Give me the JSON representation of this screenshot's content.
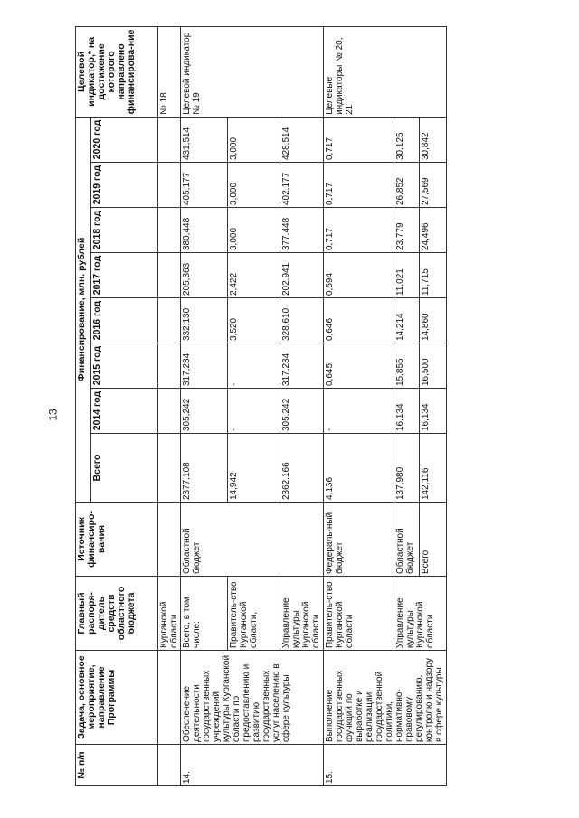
{
  "page_number": "13",
  "header": {
    "num": "№ п/п",
    "task": "Задача, основное мероприятие, направление Программы",
    "manager": "Главный распоря-дитель средств областного бюджета",
    "source": "Источник финансиро-вания",
    "financing": "Финансирование, млн. рублей",
    "total": "Всего",
    "years": [
      "2014 год",
      "2015 год",
      "2016 год",
      "2017 год",
      "2018 год",
      "2019 год",
      "2020 год"
    ],
    "indicator": "Целевой индикатор,* на достижение которого направлено финансирова-ние"
  },
  "continuation": {
    "manager": "Курганской области",
    "indicator": "№ 18"
  },
  "row14": {
    "num": "14.",
    "task": "Обеспечение деятельности государственных учреждений культуры Курганской области по предоставлению и развитию государственных услуг населению в сфере культуры",
    "source": "Областной бюджет",
    "indicator": "Целевой индикатор № 19",
    "sub": [
      {
        "manager": "Всего, в том числе:",
        "values": [
          "2377,108",
          "305,242",
          "317,234",
          "332,130",
          "205,363",
          "380,448",
          "405,177",
          "431,514"
        ]
      },
      {
        "manager": "Правитель-ство Курганской области,",
        "values": [
          "14,942",
          "-",
          "-",
          "3,520",
          "2,422",
          "3,000",
          "3,000",
          "3,000"
        ]
      },
      {
        "manager": "Управление культуры Курганской области",
        "values": [
          "2362,166",
          "305,242",
          "317,234",
          "328,610",
          "202,941",
          "377,448",
          "402,177",
          "428,514"
        ]
      }
    ]
  },
  "row15": {
    "num": "15.",
    "task": "Выполнение государственных функций по выработке и реализации государственной политики, нормативно-правовому регулированию, контролю и надзору в сфере культуры",
    "indicator": "Целевые индикаторы № 20, 21",
    "sub": [
      {
        "manager": "Правитель-ство Курганской области",
        "source": "Федераль-ный бюджет",
        "values": [
          "4,136",
          "-",
          "0,645",
          "0,646",
          "0,694",
          "0,717",
          "0,717",
          "0,717"
        ]
      },
      {
        "manager": "Управление культуры Курганской области",
        "source": "Областной бюджет",
        "values": [
          "137,980",
          "16,134",
          "15,855",
          "14,214",
          "11,021",
          "23,779",
          "26,852",
          "30,125"
        ]
      },
      {
        "source": "Всего",
        "values": [
          "142,116",
          "16,134",
          "16,500",
          "14,860",
          "11,715",
          "24,496",
          "27,569",
          "30,842"
        ]
      }
    ]
  }
}
